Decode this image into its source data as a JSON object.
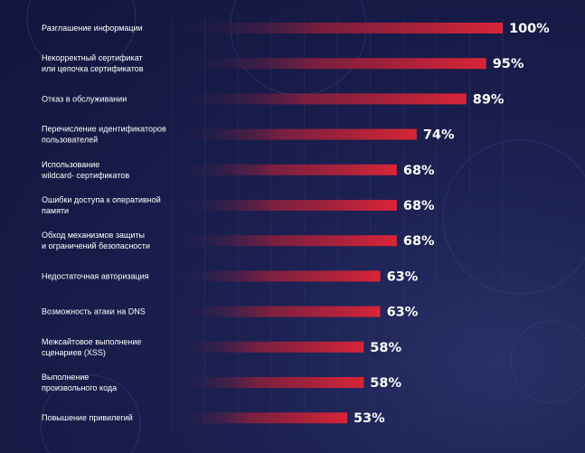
{
  "chart_data": {
    "type": "bar",
    "orientation": "horizontal",
    "categories": [
      [
        "Разглашение информации"
      ],
      [
        "Некорректный сертификат",
        "или цепочка сертификатов"
      ],
      [
        "Отказ в обслуживании"
      ],
      [
        "Перечисление идентификаторов",
        "пользователей"
      ],
      [
        "Использование",
        "wildcard- сертификатов"
      ],
      [
        "Ошибки доступа к оперативной",
        "памяти"
      ],
      [
        "Обход  механизмов защиты",
        "и ограничений безопасности"
      ],
      [
        "Недостаточная авторизация"
      ],
      [
        "Возможность атаки на DNS"
      ],
      [
        "Межсайтовое выполнение",
        "сценариев (XSS)"
      ],
      [
        "Выполнение",
        "произвольного кода"
      ],
      [
        "Повышение привилегий"
      ]
    ],
    "values": [
      100,
      95,
      89,
      74,
      68,
      68,
      68,
      63,
      63,
      58,
      58,
      53
    ],
    "value_labels": [
      "100%",
      "95%",
      "89%",
      "74%",
      "68%",
      "68%",
      "68%",
      "63%",
      "63%",
      "58%",
      "58%",
      "53%"
    ],
    "value_unit": "%",
    "xlim": [
      0,
      100
    ],
    "grid": true,
    "colors": {
      "bar": "#d92537",
      "bar_fade": "#1c2152",
      "grid": "#2c3268",
      "background": "#161a45",
      "text": "#ffffff"
    }
  }
}
